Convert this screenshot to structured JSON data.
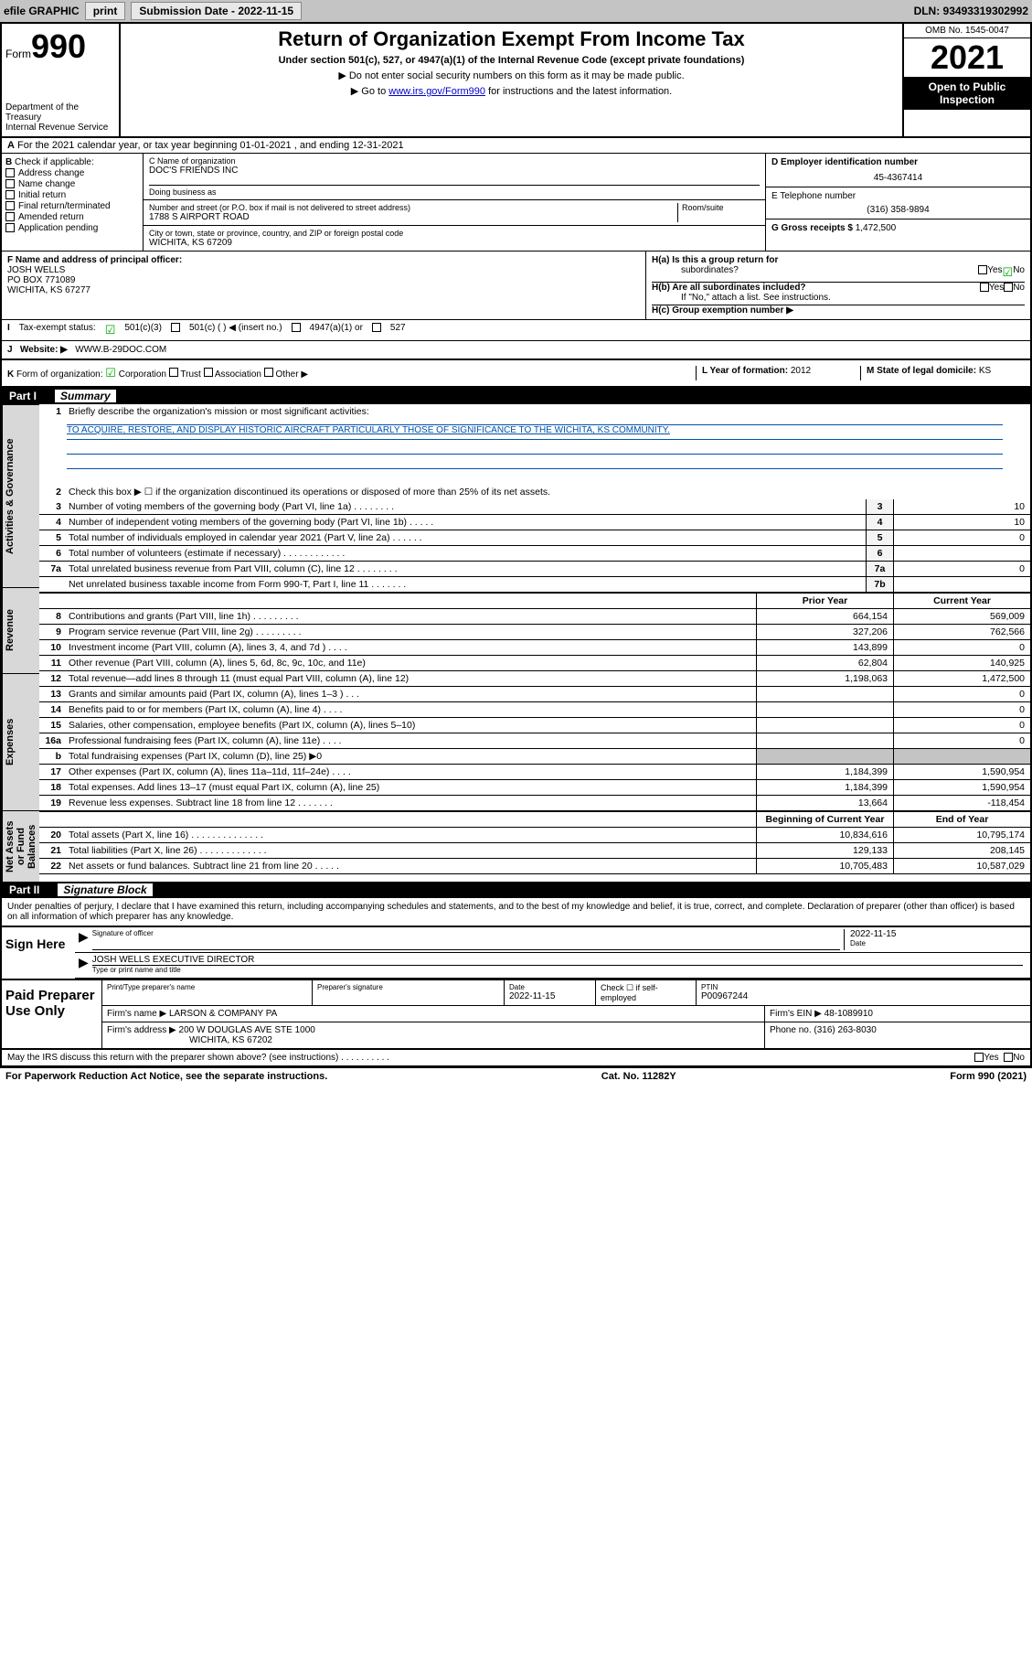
{
  "topbar": {
    "efile": "efile GRAPHIC",
    "print": "print",
    "sub_label": "Submission Date - 2022-11-15",
    "dln": "DLN: 93493319302992"
  },
  "header": {
    "form_word": "Form",
    "form_num": "990",
    "dept": "Department of the Treasury",
    "irs": "Internal Revenue Service",
    "title": "Return of Organization Exempt From Income Tax",
    "sub": "Under section 501(c), 527, or 4947(a)(1) of the Internal Revenue Code (except private foundations)",
    "note1": "▶ Do not enter social security numbers on this form as it may be made public.",
    "note2_pre": "▶ Go to ",
    "note2_link": "www.irs.gov/Form990",
    "note2_post": " for instructions and the latest information.",
    "omb": "OMB No. 1545-0047",
    "year": "2021",
    "inspect1": "Open to Public",
    "inspect2": "Inspection"
  },
  "sectionA": "For the 2021 calendar year, or tax year beginning 01-01-2021   , and ending 12-31-2021",
  "checkboxes": {
    "label": "Check if applicable:",
    "items": [
      "Address change",
      "Name change",
      "Initial return",
      "Final return/terminated",
      "Amended return",
      "Application pending"
    ],
    "b": "B"
  },
  "org": {
    "c_label": "C Name of organization",
    "name": "DOC'S FRIENDS INC",
    "dba_label": "Doing business as",
    "addr_label": "Number and street (or P.O. box if mail is not delivered to street address)",
    "room_label": "Room/suite",
    "street": "1788 S AIRPORT ROAD",
    "city_label": "City or town, state or province, country, and ZIP or foreign postal code",
    "city": "WICHITA, KS  67209"
  },
  "right_info": {
    "d_label": "D Employer identification number",
    "ein": "45-4367414",
    "e_label": "E Telephone number",
    "phone": "(316) 358-9894",
    "g_label": "G Gross receipts $ ",
    "gross": "1,472,500"
  },
  "sectionF": {
    "f_label": "F Name and address of principal officer:",
    "officer": "JOSH WELLS",
    "po": "PO BOX 771089",
    "city": "WICHITA, KS  67277",
    "ha": "H(a)  Is this a group return for",
    "ha2": "subordinates?",
    "hb": "H(b)  Are all subordinates included?",
    "hb_note": "If \"No,\" attach a list. See instructions.",
    "hc": "H(c)  Group exemption number ▶",
    "yes": "Yes",
    "no": "No"
  },
  "status": {
    "i": "I",
    "label": "Tax-exempt status:",
    "s1": "501(c)(3)",
    "s2": "501(c) (  ) ◀ (insert no.)",
    "s3": "4947(a)(1) or",
    "s4": "527"
  },
  "website": {
    "j": "J",
    "label": "Website: ▶",
    "url": "WWW.B-29DOC.COM"
  },
  "formK": {
    "k": "K",
    "label": "Form of organization:",
    "corp": "Corporation",
    "trust": "Trust",
    "assoc": "Association",
    "other": "Other ▶",
    "l_label": "L Year of formation: ",
    "l_val": "2012",
    "m_label": "M State of legal domicile: ",
    "m_val": "KS"
  },
  "part1": {
    "label": "Part I",
    "title": "Summary"
  },
  "summary": {
    "vert1": "Activities & Governance",
    "vert2": "Revenue",
    "vert3": "Expenses",
    "vert4": "Net Assets or Fund Balances",
    "line1": "Briefly describe the organization's mission or most significant activities:",
    "mission": "TO ACQUIRE, RESTORE, AND DISPLAY HISTORIC AIRCRAFT PARTICULARLY THOSE OF SIGNIFICANCE TO THE WICHITA, KS COMMUNITY.",
    "line2": "Check this box ▶ ☐  if the organization discontinued its operations or disposed of more than 25% of its net assets.",
    "lines": [
      {
        "n": "3",
        "t": "Number of voting members of the governing body (Part VI, line 1a)  .   .   .   .   .   .   .   .",
        "box": "3",
        "v": "10"
      },
      {
        "n": "4",
        "t": "Number of independent voting members of the governing body (Part VI, line 1b)  .   .   .   .   .",
        "box": "4",
        "v": "10"
      },
      {
        "n": "5",
        "t": "Total number of individuals employed in calendar year 2021 (Part V, line 2a)  .   .   .   .   .   .",
        "box": "5",
        "v": "0"
      },
      {
        "n": "6",
        "t": "Total number of volunteers (estimate if necessary)  .   .   .   .   .   .   .   .   .   .   .   .",
        "box": "6",
        "v": ""
      },
      {
        "n": "7a",
        "t": "Total unrelated business revenue from Part VIII, column (C), line 12  .   .   .   .   .   .   .   .",
        "box": "7a",
        "v": "0"
      },
      {
        "n": "",
        "t": "Net unrelated business taxable income from Form 990-T, Part I, line 11  .   .   .   .   .   .   .",
        "box": "7b",
        "v": ""
      }
    ],
    "col_prior": "Prior Year",
    "col_curr": "Current Year",
    "revenue": [
      {
        "n": "8",
        "t": "Contributions and grants (Part VIII, line 1h)  .   .   .   .   .   .   .   .   .",
        "p": "664,154",
        "c": "569,009"
      },
      {
        "n": "9",
        "t": "Program service revenue (Part VIII, line 2g)  .   .   .   .   .   .   .   .   .",
        "p": "327,206",
        "c": "762,566"
      },
      {
        "n": "10",
        "t": "Investment income (Part VIII, column (A), lines 3, 4, and 7d )  .   .   .   .",
        "p": "143,899",
        "c": "0"
      },
      {
        "n": "11",
        "t": "Other revenue (Part VIII, column (A), lines 5, 6d, 8c, 9c, 10c, and 11e)",
        "p": "62,804",
        "c": "140,925"
      },
      {
        "n": "12",
        "t": "Total revenue—add lines 8 through 11 (must equal Part VIII, column (A), line 12)",
        "p": "1,198,063",
        "c": "1,472,500"
      }
    ],
    "expenses": [
      {
        "n": "13",
        "t": "Grants and similar amounts paid (Part IX, column (A), lines 1–3 )  .   .   .",
        "p": "",
        "c": "0"
      },
      {
        "n": "14",
        "t": "Benefits paid to or for members (Part IX, column (A), line 4)  .   .   .   .",
        "p": "",
        "c": "0"
      },
      {
        "n": "15",
        "t": "Salaries, other compensation, employee benefits (Part IX, column (A), lines 5–10)",
        "p": "",
        "c": "0"
      },
      {
        "n": "16a",
        "t": "Professional fundraising fees (Part IX, column (A), line 11e)  .   .   .   .",
        "p": "",
        "c": "0"
      },
      {
        "n": "b",
        "t": "Total fundraising expenses (Part IX, column (D), line 25) ▶0",
        "p": "",
        "c": "",
        "shaded": true
      },
      {
        "n": "17",
        "t": "Other expenses (Part IX, column (A), lines 11a–11d, 11f–24e)  .   .   .   .",
        "p": "1,184,399",
        "c": "1,590,954"
      },
      {
        "n": "18",
        "t": "Total expenses. Add lines 13–17 (must equal Part IX, column (A), line 25)",
        "p": "1,184,399",
        "c": "1,590,954"
      },
      {
        "n": "19",
        "t": "Revenue less expenses. Subtract line 18 from line 12  .   .   .   .   .   .   .",
        "p": "13,664",
        "c": "-118,454"
      }
    ],
    "col_beg": "Beginning of Current Year",
    "col_end": "End of Year",
    "assets": [
      {
        "n": "20",
        "t": "Total assets (Part X, line 16)  .   .   .   .   .   .   .   .   .   .   .   .   .   .",
        "p": "10,834,616",
        "c": "10,795,174"
      },
      {
        "n": "21",
        "t": "Total liabilities (Part X, line 26)  .   .   .   .   .   .   .   .   .   .   .   .   .",
        "p": "129,133",
        "c": "208,145"
      },
      {
        "n": "22",
        "t": "Net assets or fund balances. Subtract line 21 from line 20  .   .   .   .   .",
        "p": "10,705,483",
        "c": "10,587,029"
      }
    ]
  },
  "part2": {
    "label": "Part II",
    "title": "Signature Block",
    "decl": "Under penalties of perjury, I declare that I have examined this return, including accompanying schedules and statements, and to the best of my knowledge and belief, it is true, correct, and complete. Declaration of preparer (other than officer) is based on all information of which preparer has any knowledge."
  },
  "sign": {
    "here": "Sign Here",
    "sig_label": "Signature of officer",
    "date": "2022-11-15",
    "date_label": "Date",
    "name": "JOSH WELLS  EXECUTIVE DIRECTOR",
    "name_label": "Type or print name and title"
  },
  "prep": {
    "label": "Paid Preparer Use Only",
    "h1": "Print/Type preparer's name",
    "h2": "Preparer's signature",
    "h3": "Date",
    "date": "2022-11-15",
    "check": "Check ☐ if self-employed",
    "ptin_label": "PTIN",
    "ptin": "P00967244",
    "firm_label": "Firm's name    ▶",
    "firm": "LARSON & COMPANY PA",
    "ein_label": "Firm's EIN ▶",
    "ein": "48-1089910",
    "addr_label": "Firm's address ▶",
    "addr1": "200 W DOUGLAS AVE STE 1000",
    "addr2": "WICHITA, KS  67202",
    "phone_label": "Phone no. ",
    "phone": "(316) 263-8030"
  },
  "footer": {
    "discuss": "May the IRS discuss this return with the preparer shown above? (see instructions)  .   .   .   .   .   .   .   .   .   .",
    "yes": "Yes",
    "no": "No",
    "paperwork": "For Paperwork Reduction Act Notice, see the separate instructions.",
    "cat": "Cat. No. 11282Y",
    "form": "Form 990 (2021)"
  }
}
